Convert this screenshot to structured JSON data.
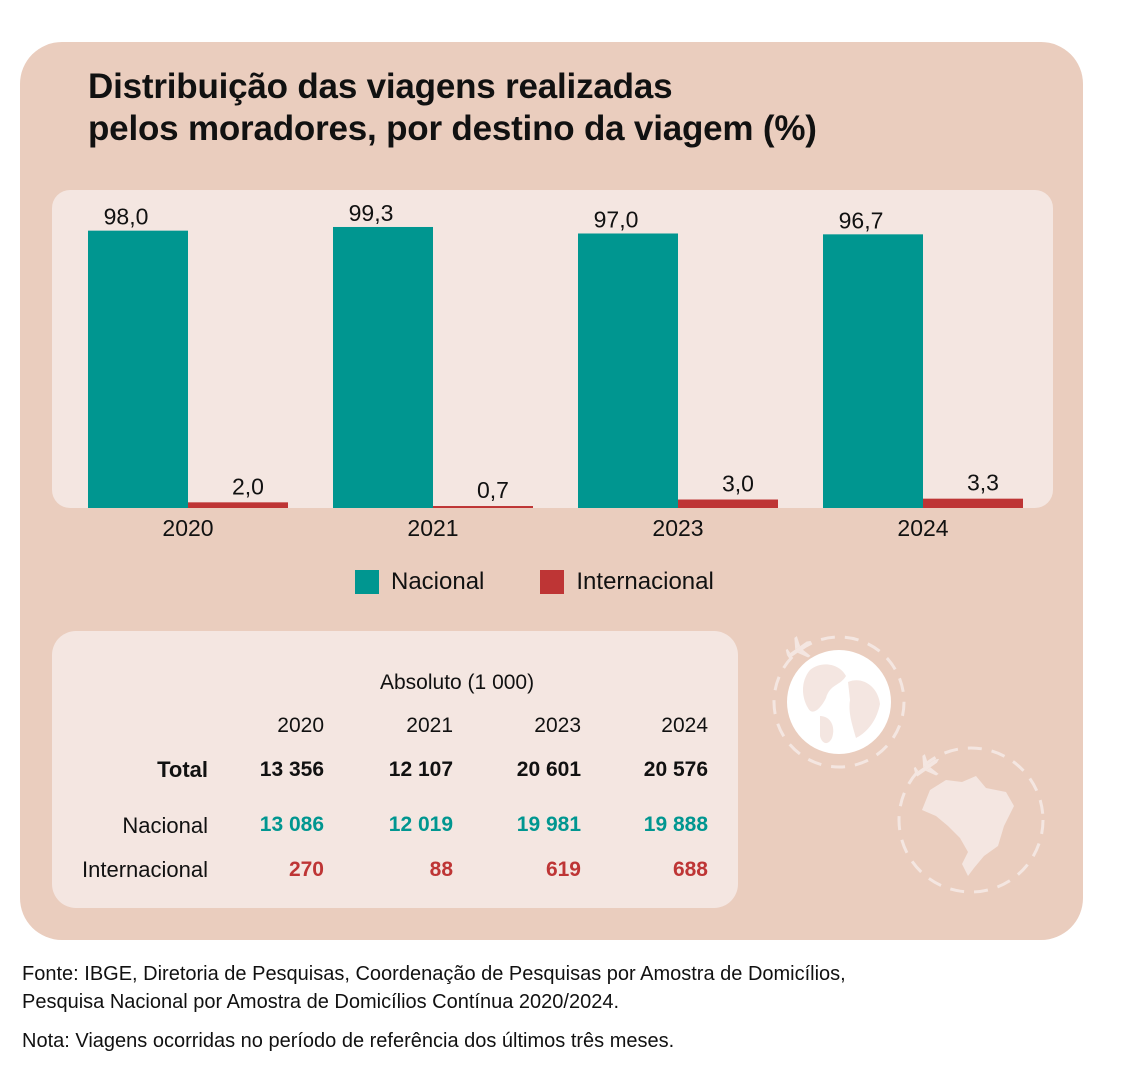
{
  "title": {
    "line1": "Distribuição das viagens realizadas",
    "line2": "pelos moradores, por destino da viagem (%)"
  },
  "colors": {
    "nacional": "#009690",
    "internacional": "#be3535",
    "card": "#eacdbe",
    "panel": "#f4e6e1"
  },
  "chart_data": {
    "type": "bar",
    "title": "Distribuição das viagens realizadas pelos moradores, por destino da viagem (%)",
    "xlabel": "",
    "ylabel": "",
    "ylim": [
      0,
      100
    ],
    "grid": false,
    "legend_position": "bottom",
    "categories": [
      "2020",
      "2021",
      "2023",
      "2024"
    ],
    "series": [
      {
        "name": "Nacional",
        "values": [
          98.0,
          99.3,
          97.0,
          96.7
        ],
        "labels": [
          "98,0",
          "99,3",
          "97,0",
          "96,7"
        ]
      },
      {
        "name": "Internacional",
        "values": [
          2.0,
          0.7,
          3.0,
          3.3
        ],
        "labels": [
          "2,0",
          "0,7",
          "3,0",
          "3,3"
        ]
      }
    ]
  },
  "legend": [
    {
      "label": "Nacional"
    },
    {
      "label": "Internacional"
    }
  ],
  "table": {
    "caption": "Absoluto (1 000)",
    "years": [
      "2020",
      "2021",
      "2023",
      "2024"
    ],
    "rows": [
      {
        "label": "Total",
        "values": [
          "13 356",
          "12 107",
          "20 601",
          "20 576"
        ]
      },
      {
        "label": "Nacional",
        "values": [
          "13 086",
          "12 019",
          "19 981",
          "19 888"
        ]
      },
      {
        "label": "Internacional",
        "values": [
          "270",
          "88",
          "619",
          "688"
        ]
      }
    ]
  },
  "decoration": {
    "icons": [
      "globe-icon",
      "airplane-icon",
      "brazil-map-icon"
    ]
  },
  "footer": {
    "fonte_line1": "Fonte: IBGE, Diretoria de Pesquisas, Coordenação de Pesquisas por Amostra de Domicílios,",
    "fonte_line2": "Pesquisa Nacional por Amostra de Domicílios Contínua 2020/2024.",
    "nota": "Nota: Viagens ocorridas no período de referência dos últimos três meses."
  }
}
